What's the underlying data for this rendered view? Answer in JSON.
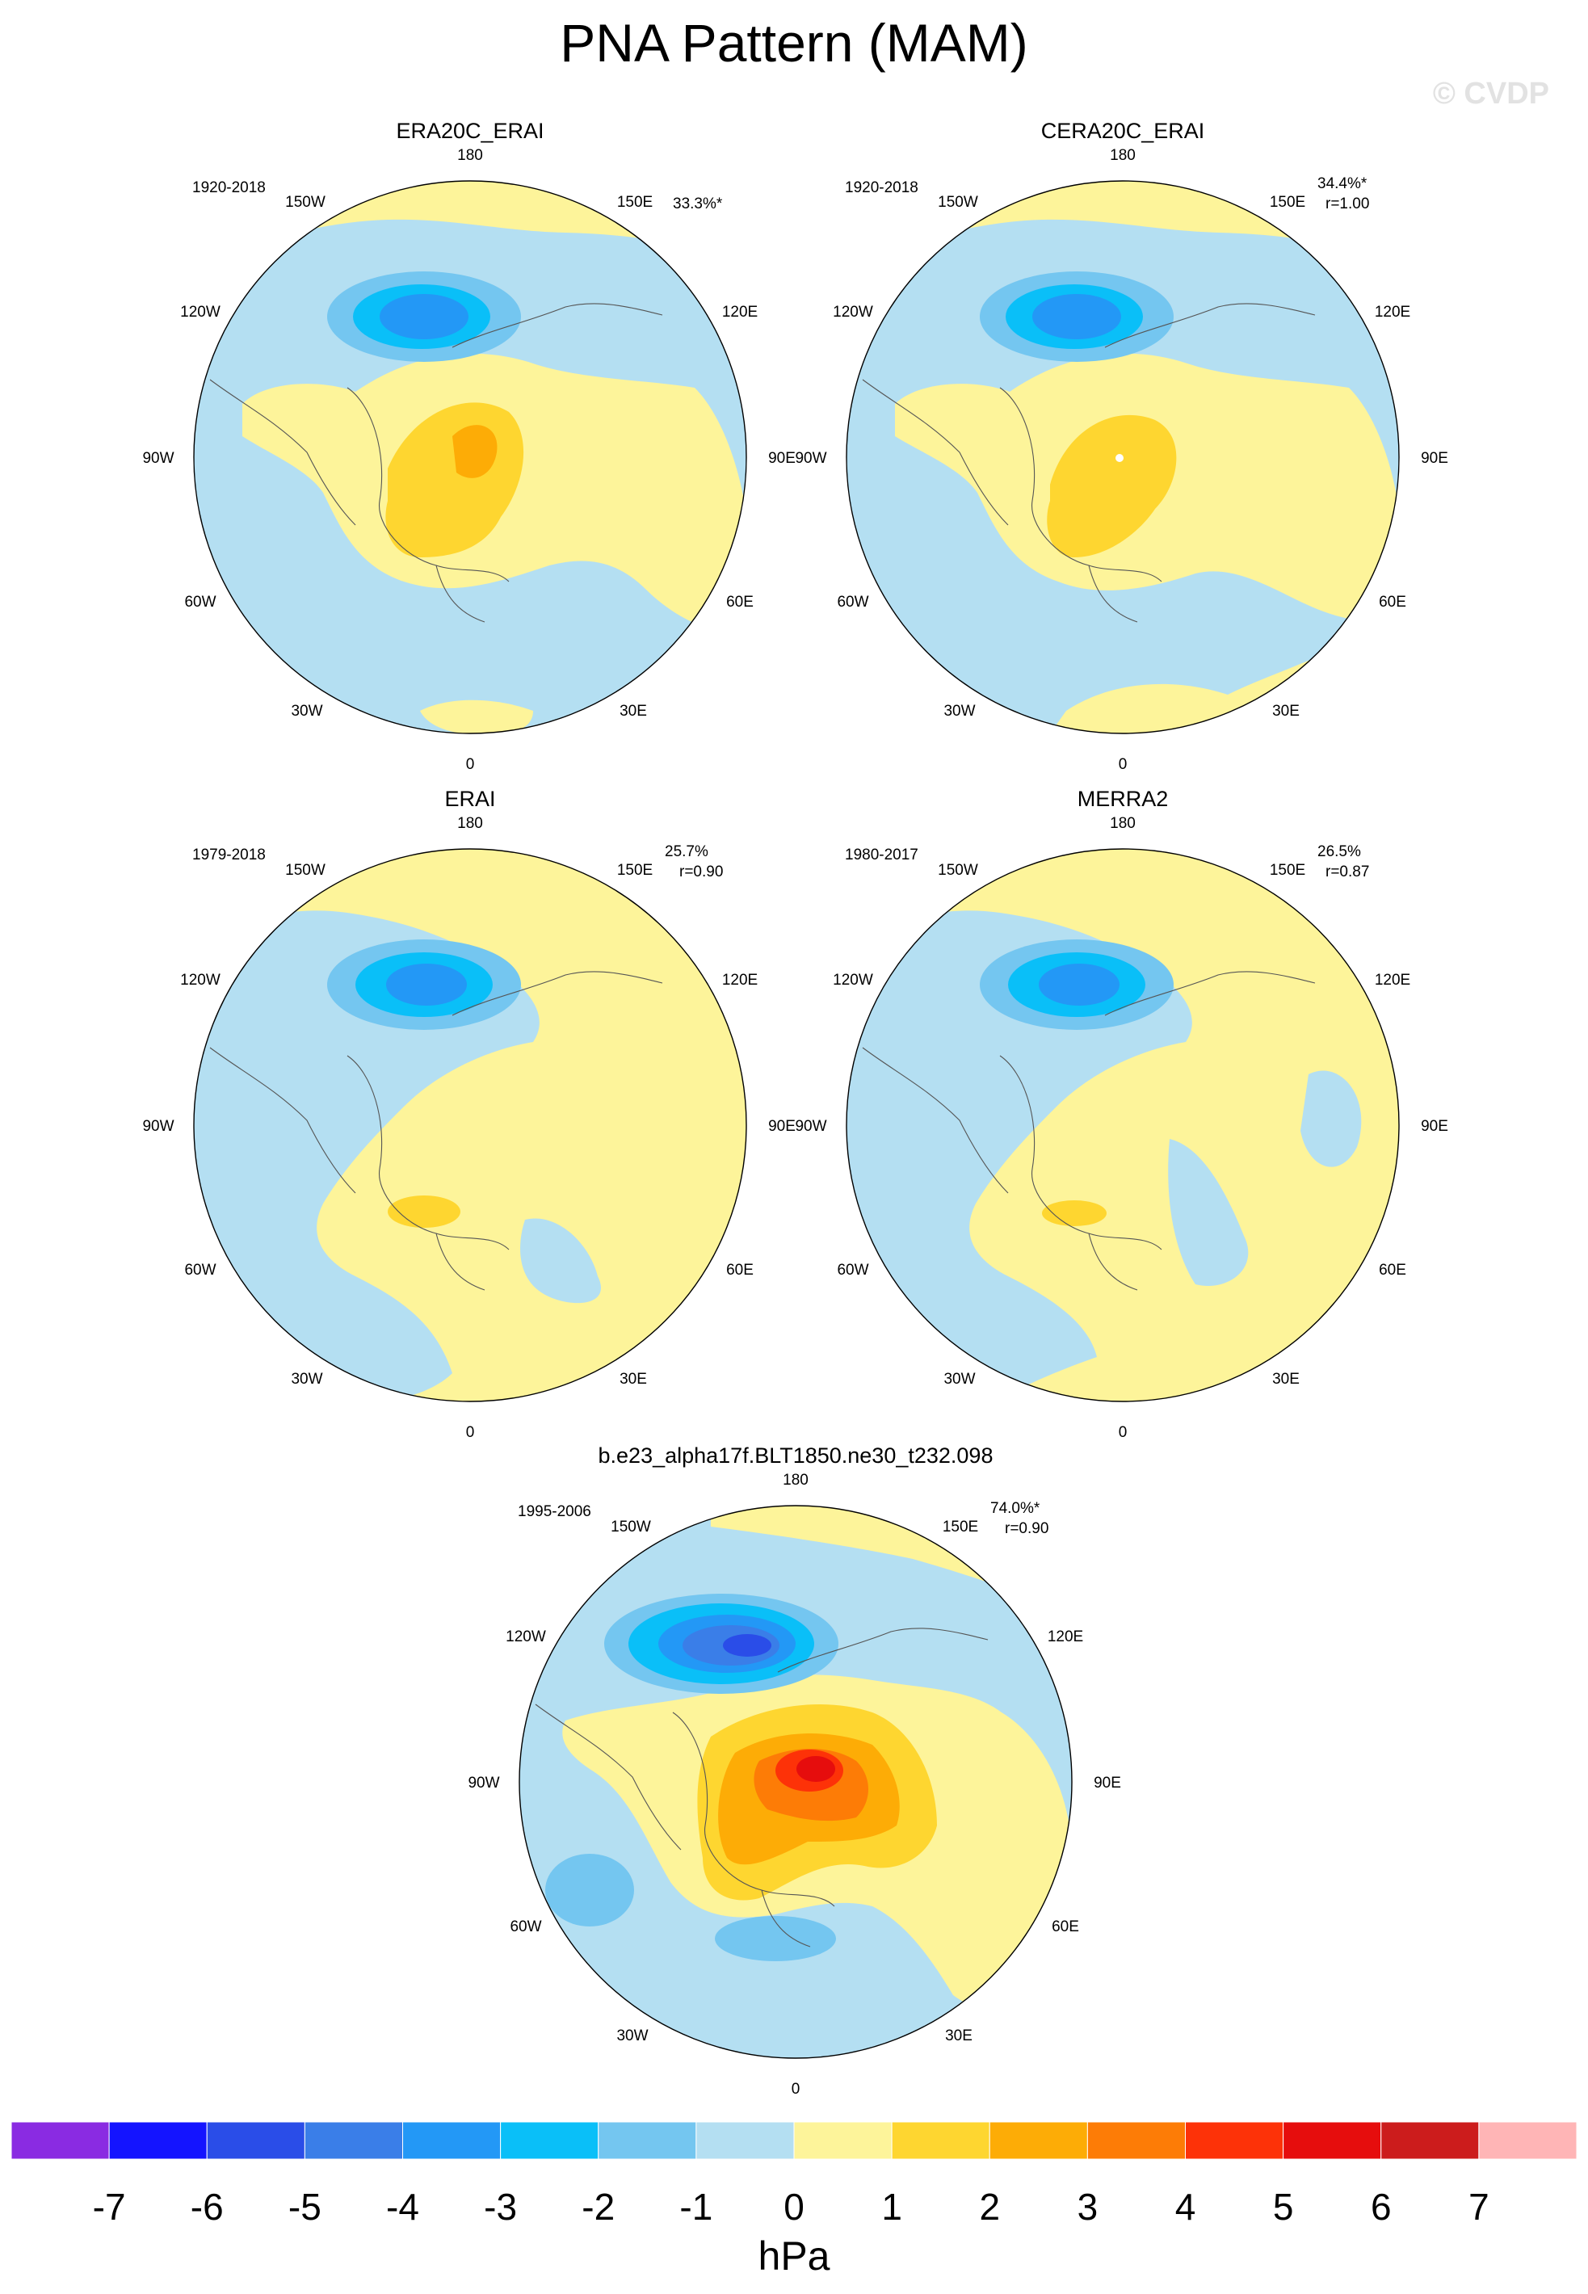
{
  "figure": {
    "title": "PNA Pattern (MAM)",
    "copyright": "© CVDP",
    "units": "hPa"
  },
  "longitude_labels": {
    "top": "180",
    "bottom": "0",
    "left": "90W",
    "right": "90E",
    "upper_left_outer": "120W",
    "upper_left_inner": "150W",
    "upper_right_inner": "150E",
    "upper_right_outer": "120E",
    "lower_left_outer": "60W",
    "lower_left_inner": "30W",
    "lower_right_outer": "60E",
    "lower_right_inner": "30E"
  },
  "panels": [
    {
      "id": "p1",
      "title": "ERA20C_ERAI",
      "years": "1920-2018",
      "pct": "33.3%*",
      "corr": ""
    },
    {
      "id": "p2",
      "title": "CERA20C_ERAI",
      "years": "1920-2018",
      "pct": "34.4%*",
      "corr": "r=1.00"
    },
    {
      "id": "p3",
      "title": "ERAI",
      "years": "1979-2018",
      "pct": "25.7%",
      "corr": "r=0.90"
    },
    {
      "id": "p4",
      "title": "MERRA2",
      "years": "1980-2017",
      "pct": "26.5%",
      "corr": "r=0.87"
    },
    {
      "id": "p5",
      "title": "b.e23_alpha17f.BLT1850.ne30_t232.098",
      "years": "1995-2006",
      "pct": "74.0%*",
      "corr": "r=0.90"
    }
  ],
  "colorbar": {
    "labels": [
      "-7",
      "-6",
      "-5",
      "-4",
      "-3",
      "-2",
      "-1",
      "0",
      "1",
      "2",
      "3",
      "4",
      "5",
      "6",
      "7"
    ],
    "colors": [
      "#8a2be2",
      "#1414ff",
      "#2a4de8",
      "#3a7ee8",
      "#2398f6",
      "#0abff8",
      "#74c6f0",
      "#b4dff2",
      "#fdf49a",
      "#fed630",
      "#fdac06",
      "#fd7c06",
      "#fd3208",
      "#e60d0d",
      "#cc1c1c",
      "#ffb5b6"
    ]
  },
  "palette": {
    "neg1": "#b4dff2",
    "neg2": "#74c6f0",
    "neg3": "#0abff8",
    "neg4": "#2398f6",
    "neg5": "#3a7ee8",
    "pos1": "#fdf49a",
    "pos2": "#fed630",
    "pos3": "#fdac06",
    "pos4": "#fd7c06",
    "pos5": "#fd3208",
    "pos6": "#e60d0d"
  }
}
